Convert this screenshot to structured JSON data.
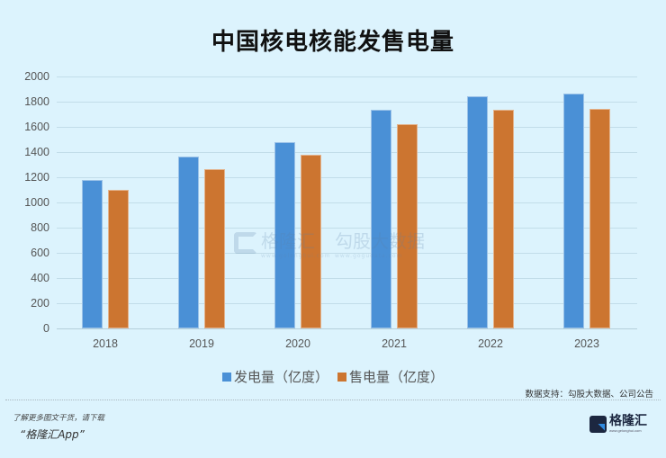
{
  "title": "中国核电核能发售电量",
  "chart_data": {
    "type": "bar",
    "title": "中国核电核能发售电量",
    "xlabel": "",
    "ylabel": "",
    "ylim": [
      0,
      2000
    ],
    "yticks": [
      0,
      200,
      400,
      600,
      800,
      1000,
      1200,
      1400,
      1600,
      1800,
      2000
    ],
    "grid": true,
    "legend_position": "bottom",
    "categories": [
      "2018",
      "2019",
      "2020",
      "2021",
      "2022",
      "2023"
    ],
    "series": [
      {
        "name": "发电量（亿度）",
        "color": "#4a90d6",
        "values": [
          1180,
          1366,
          1480,
          1735,
          1845,
          1865
        ]
      },
      {
        "name": "售电量（亿度）",
        "color": "#cc7530",
        "values": [
          1100,
          1265,
          1380,
          1620,
          1735,
          1745
        ]
      }
    ]
  },
  "axis": {
    "yticks": [
      "0",
      "200",
      "400",
      "600",
      "800",
      "1000",
      "1200",
      "1400",
      "1600",
      "1800",
      "2000"
    ],
    "xticks": [
      "2018",
      "2019",
      "2020",
      "2021",
      "2022",
      "2023"
    ]
  },
  "legend": [
    {
      "label": "发电量（亿度）",
      "color": "#4a90d6"
    },
    {
      "label": "售电量（亿度）",
      "color": "#cc7530"
    }
  ],
  "watermark": {
    "brand": "格隆汇",
    "brand_url": "www.gelonghui.com",
    "data_brand": "勾股大数据",
    "data_url": "www.gogudata.com"
  },
  "footer": {
    "source": "数据支持：勾股大数据、公司公告",
    "promo_line1": "了解更多图文干货，请下载",
    "promo_line2": "“格隆汇App”",
    "logo_name": "格隆汇",
    "logo_url": "www.gelonghui.com"
  }
}
